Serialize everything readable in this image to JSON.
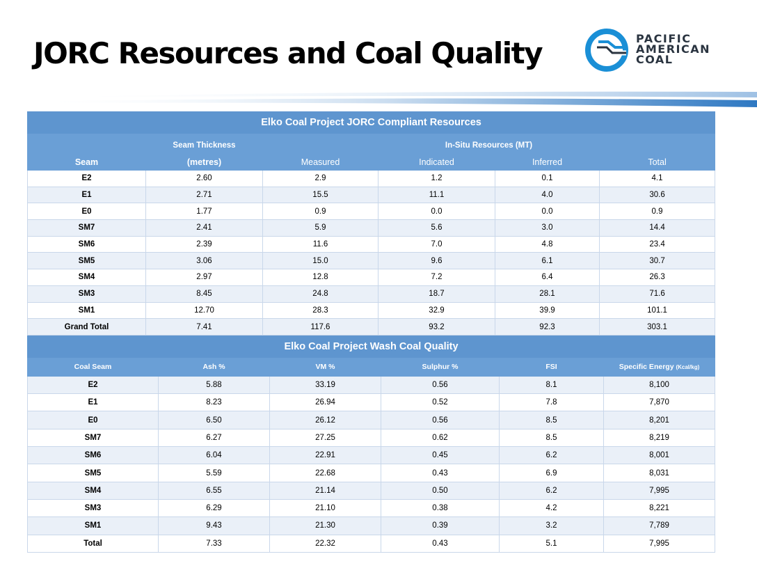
{
  "title": "JORC Resources and Coal Quality",
  "logo": {
    "line1": "PACIFIC",
    "line2": "AMERICAN",
    "line3": "COAL"
  },
  "colors": {
    "header": "#6a9fd6",
    "logo_blue": "#1a8fd6",
    "row_alt": "#eaf0f8"
  },
  "resources": {
    "title": "Elko Coal Project JORC Compliant Resources",
    "group_thickness": "Seam Thickness",
    "group_resources": "In-Situ Resources (MT)",
    "headers": [
      "Seam",
      "(metres)",
      "Measured",
      "Indicated",
      "Inferred",
      "Total"
    ],
    "rows": [
      [
        "E2",
        "2.60",
        "2.9",
        "1.2",
        "0.1",
        "4.1"
      ],
      [
        "E1",
        "2.71",
        "15.5",
        "11.1",
        "4.0",
        "30.6"
      ],
      [
        "E0",
        "1.77",
        "0.9",
        "0.0",
        "0.0",
        "0.9"
      ],
      [
        "SM7",
        "2.41",
        "5.9",
        "5.6",
        "3.0",
        "14.4"
      ],
      [
        "SM6",
        "2.39",
        "11.6",
        "7.0",
        "4.8",
        "23.4"
      ],
      [
        "SM5",
        "3.06",
        "15.0",
        "9.6",
        "6.1",
        "30.7"
      ],
      [
        "SM4",
        "2.97",
        "12.8",
        "7.2",
        "6.4",
        "26.3"
      ],
      [
        "SM3",
        "8.45",
        "24.8",
        "18.7",
        "28.1",
        "71.6"
      ],
      [
        "SM1",
        "12.70",
        "28.3",
        "32.9",
        "39.9",
        "101.1"
      ],
      [
        "Grand Total",
        "7.41",
        "117.6",
        "93.2",
        "92.3",
        "303.1"
      ]
    ]
  },
  "quality": {
    "title": "Elko Coal Project Wash Coal Quality",
    "headers": [
      "Coal Seam",
      "Ash %",
      "VM %",
      "Sulphur %",
      "FSI",
      "Specific Energy"
    ],
    "energy_unit": "(Kcal/kg)",
    "rows": [
      [
        "E2",
        "5.88",
        "33.19",
        "0.56",
        "8.1",
        "8,100"
      ],
      [
        "E1",
        "8.23",
        "26.94",
        "0.52",
        "7.8",
        "7,870"
      ],
      [
        "E0",
        "6.50",
        "26.12",
        "0.56",
        "8.5",
        "8,201"
      ],
      [
        "SM7",
        "6.27",
        "27.25",
        "0.62",
        "8.5",
        "8,219"
      ],
      [
        "SM6",
        "6.04",
        "22.91",
        "0.45",
        "6.2",
        "8,001"
      ],
      [
        "SM5",
        "5.59",
        "22.68",
        "0.43",
        "6.9",
        "8,031"
      ],
      [
        "SM4",
        "6.55",
        "21.14",
        "0.50",
        "6.2",
        "7,995"
      ],
      [
        "SM3",
        "6.29",
        "21.10",
        "0.38",
        "4.2",
        "8,221"
      ],
      [
        "SM1",
        "9.43",
        "21.30",
        "0.39",
        "3.2",
        "7,789"
      ],
      [
        "Total",
        "7.33",
        "22.32",
        "0.43",
        "5.1",
        "7,995"
      ]
    ]
  }
}
